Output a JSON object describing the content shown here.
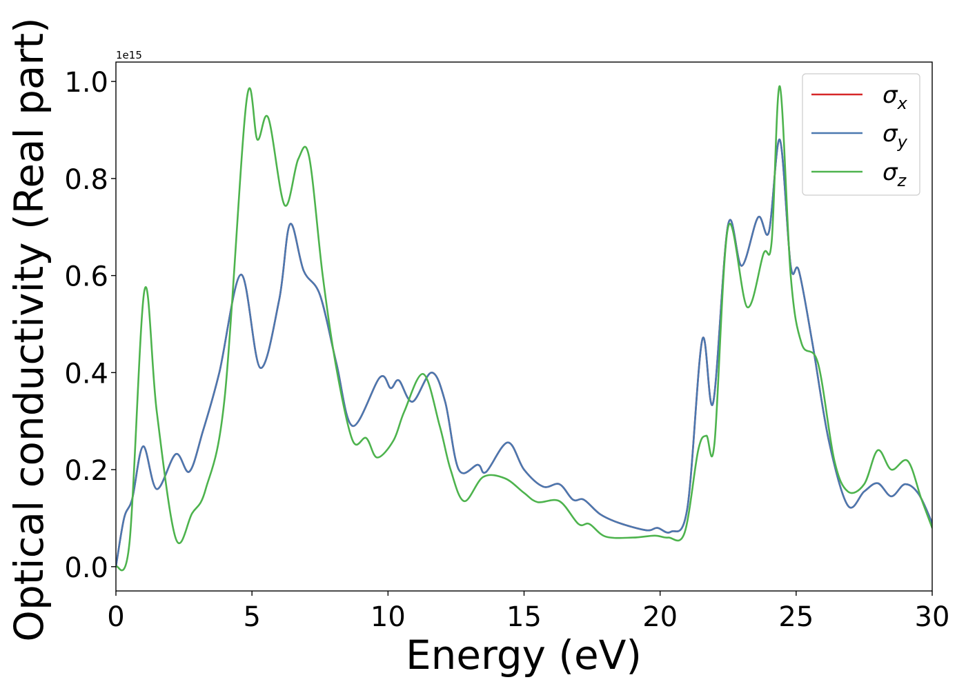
{
  "chart_data": {
    "type": "line",
    "title": "",
    "xlabel": "Energy (eV)",
    "ylabel": "Optical conductivity (Real part)",
    "y_offset_text": "1e15",
    "y_multiplier": 1000000000000000.0,
    "xlim": [
      0,
      30
    ],
    "ylim": [
      -0.05,
      1.04
    ],
    "xticks": [
      0,
      5,
      10,
      15,
      20,
      25,
      30
    ],
    "xtick_labels": [
      "0",
      "5",
      "10",
      "15",
      "20",
      "25",
      "30"
    ],
    "yticks": [
      0.0,
      0.2,
      0.4,
      0.6,
      0.8,
      1.0
    ],
    "ytick_labels": [
      "0.0",
      "0.2",
      "0.4",
      "0.6",
      "0.8",
      "1.0"
    ],
    "grid": false,
    "legend_position": "top-right",
    "colors": {
      "sigma_x": "#d62728",
      "sigma_y": "#4a78b0",
      "sigma_z": "#4db34d"
    },
    "series": [
      {
        "name": "σx",
        "legend": {
          "base": "σ",
          "sub": "x"
        },
        "color": "#d62728",
        "hidden_under": "σy",
        "points": [
          [
            0,
            0
          ],
          [
            0.3,
            0.1
          ],
          [
            0.6,
            0.14
          ],
          [
            1.0,
            0.248
          ],
          [
            1.5,
            0.16
          ],
          [
            2.2,
            0.232
          ],
          [
            2.7,
            0.196
          ],
          [
            3.2,
            0.28
          ],
          [
            3.8,
            0.4
          ],
          [
            4.6,
            0.602
          ],
          [
            5.3,
            0.41
          ],
          [
            6.0,
            0.55
          ],
          [
            6.4,
            0.706
          ],
          [
            6.9,
            0.61
          ],
          [
            7.5,
            0.56
          ],
          [
            8.1,
            0.42
          ],
          [
            8.7,
            0.29
          ],
          [
            9.7,
            0.39
          ],
          [
            10.1,
            0.368
          ],
          [
            10.4,
            0.384
          ],
          [
            10.9,
            0.34
          ],
          [
            11.6,
            0.4
          ],
          [
            12.1,
            0.34
          ],
          [
            12.6,
            0.2
          ],
          [
            13.3,
            0.21
          ],
          [
            13.6,
            0.195
          ],
          [
            14.4,
            0.256
          ],
          [
            15.0,
            0.2
          ],
          [
            15.7,
            0.165
          ],
          [
            16.3,
            0.17
          ],
          [
            16.8,
            0.138
          ],
          [
            17.2,
            0.138
          ],
          [
            17.8,
            0.108
          ],
          [
            18.5,
            0.09
          ],
          [
            19.5,
            0.075
          ],
          [
            19.9,
            0.08
          ],
          [
            20.4,
            0.072
          ],
          [
            21.0,
            0.12
          ],
          [
            21.55,
            0.468
          ],
          [
            21.95,
            0.338
          ],
          [
            22.5,
            0.705
          ],
          [
            23.0,
            0.62
          ],
          [
            23.6,
            0.72
          ],
          [
            24.0,
            0.69
          ],
          [
            24.4,
            0.88
          ],
          [
            24.8,
            0.62
          ],
          [
            25.1,
            0.61
          ],
          [
            25.6,
            0.46
          ],
          [
            26.2,
            0.26
          ],
          [
            26.9,
            0.126
          ],
          [
            27.5,
            0.155
          ],
          [
            28.0,
            0.172
          ],
          [
            28.5,
            0.145
          ],
          [
            29.0,
            0.17
          ],
          [
            29.5,
            0.15
          ],
          [
            30,
            0.09
          ]
        ]
      },
      {
        "name": "σy",
        "legend": {
          "base": "σ",
          "sub": "y"
        },
        "color": "#4a78b0",
        "points": [
          [
            0,
            0
          ],
          [
            0.3,
            0.1
          ],
          [
            0.6,
            0.14
          ],
          [
            1.0,
            0.248
          ],
          [
            1.5,
            0.16
          ],
          [
            2.2,
            0.232
          ],
          [
            2.7,
            0.196
          ],
          [
            3.2,
            0.28
          ],
          [
            3.8,
            0.4
          ],
          [
            4.6,
            0.602
          ],
          [
            5.3,
            0.41
          ],
          [
            6.0,
            0.55
          ],
          [
            6.4,
            0.706
          ],
          [
            6.9,
            0.61
          ],
          [
            7.5,
            0.56
          ],
          [
            8.1,
            0.42
          ],
          [
            8.7,
            0.29
          ],
          [
            9.7,
            0.39
          ],
          [
            10.1,
            0.368
          ],
          [
            10.4,
            0.384
          ],
          [
            10.9,
            0.34
          ],
          [
            11.6,
            0.4
          ],
          [
            12.1,
            0.34
          ],
          [
            12.6,
            0.2
          ],
          [
            13.3,
            0.21
          ],
          [
            13.6,
            0.195
          ],
          [
            14.4,
            0.256
          ],
          [
            15.0,
            0.2
          ],
          [
            15.7,
            0.165
          ],
          [
            16.3,
            0.17
          ],
          [
            16.8,
            0.138
          ],
          [
            17.2,
            0.138
          ],
          [
            17.8,
            0.108
          ],
          [
            18.5,
            0.09
          ],
          [
            19.5,
            0.075
          ],
          [
            19.9,
            0.08
          ],
          [
            20.4,
            0.072
          ],
          [
            21.0,
            0.12
          ],
          [
            21.55,
            0.468
          ],
          [
            21.95,
            0.338
          ],
          [
            22.5,
            0.705
          ],
          [
            23.0,
            0.62
          ],
          [
            23.6,
            0.72
          ],
          [
            24.0,
            0.69
          ],
          [
            24.4,
            0.88
          ],
          [
            24.8,
            0.62
          ],
          [
            25.1,
            0.61
          ],
          [
            25.6,
            0.46
          ],
          [
            26.2,
            0.26
          ],
          [
            26.9,
            0.126
          ],
          [
            27.5,
            0.155
          ],
          [
            28.0,
            0.172
          ],
          [
            28.5,
            0.145
          ],
          [
            29.0,
            0.17
          ],
          [
            29.5,
            0.15
          ],
          [
            30,
            0.09
          ]
        ]
      },
      {
        "name": "σz",
        "legend": {
          "base": "σ",
          "sub": "z"
        },
        "color": "#4db34d",
        "points": [
          [
            0,
            0
          ],
          [
            0.5,
            0.05
          ],
          [
            1.05,
            0.57
          ],
          [
            1.5,
            0.32
          ],
          [
            2.2,
            0.058
          ],
          [
            2.8,
            0.11
          ],
          [
            3.3,
            0.16
          ],
          [
            4.0,
            0.35
          ],
          [
            4.8,
            0.96
          ],
          [
            5.2,
            0.88
          ],
          [
            5.6,
            0.925
          ],
          [
            6.2,
            0.745
          ],
          [
            6.7,
            0.84
          ],
          [
            7.1,
            0.845
          ],
          [
            7.6,
            0.6
          ],
          [
            8.1,
            0.41
          ],
          [
            8.7,
            0.26
          ],
          [
            9.2,
            0.265
          ],
          [
            9.6,
            0.225
          ],
          [
            10.2,
            0.26
          ],
          [
            10.6,
            0.32
          ],
          [
            11.3,
            0.397
          ],
          [
            11.9,
            0.29
          ],
          [
            12.3,
            0.2
          ],
          [
            12.8,
            0.135
          ],
          [
            13.5,
            0.185
          ],
          [
            14.3,
            0.182
          ],
          [
            15.0,
            0.152
          ],
          [
            15.5,
            0.133
          ],
          [
            16.3,
            0.135
          ],
          [
            17.0,
            0.088
          ],
          [
            17.4,
            0.088
          ],
          [
            18.0,
            0.062
          ],
          [
            19.0,
            0.06
          ],
          [
            19.8,
            0.064
          ],
          [
            20.3,
            0.06
          ],
          [
            20.9,
            0.07
          ],
          [
            21.4,
            0.24
          ],
          [
            21.7,
            0.27
          ],
          [
            22.0,
            0.255
          ],
          [
            22.5,
            0.7
          ],
          [
            23.2,
            0.535
          ],
          [
            23.8,
            0.645
          ],
          [
            24.1,
            0.67
          ],
          [
            24.4,
            0.99
          ],
          [
            24.8,
            0.6
          ],
          [
            25.2,
            0.46
          ],
          [
            25.8,
            0.42
          ],
          [
            26.4,
            0.22
          ],
          [
            26.9,
            0.155
          ],
          [
            27.5,
            0.17
          ],
          [
            28.0,
            0.24
          ],
          [
            28.5,
            0.2
          ],
          [
            29.1,
            0.218
          ],
          [
            29.6,
            0.14
          ],
          [
            30,
            0.08
          ]
        ]
      }
    ]
  }
}
